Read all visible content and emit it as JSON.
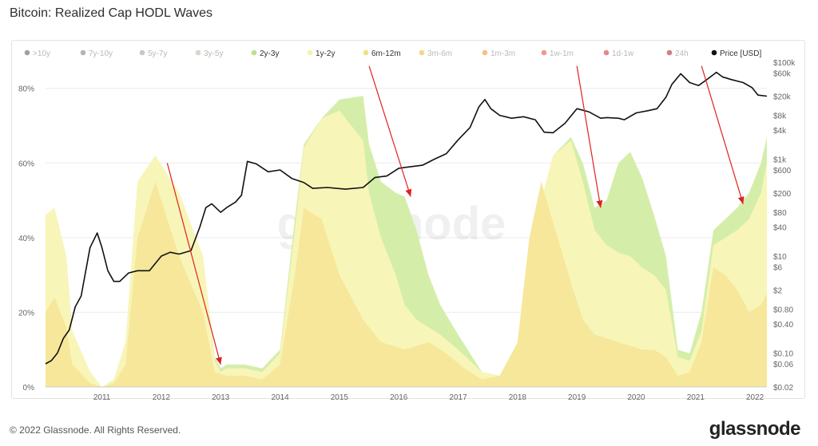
{
  "header": {
    "title": "Bitcoin: Realized Cap HODL Waves"
  },
  "footer": {
    "copyright": "© 2022 Glassnode. All Rights Reserved.",
    "logo": "glassnode"
  },
  "watermark": "glassnode",
  "chart_data": {
    "type": "area",
    "title": "Bitcoin: Realized Cap HODL Waves",
    "legend_position": "top",
    "legend": [
      {
        "name": ">10y",
        "color": "#555555",
        "active": false
      },
      {
        "name": "7y-10y",
        "color": "#777777",
        "active": false
      },
      {
        "name": "5y-7y",
        "color": "#999999",
        "active": false
      },
      {
        "name": "3y-5y",
        "color": "#b7b7a0",
        "active": false
      },
      {
        "name": "2y-3y",
        "color": "#b9e38f",
        "active": true
      },
      {
        "name": "1y-2y",
        "color": "#f6f3a6",
        "active": true
      },
      {
        "name": "6m-12m",
        "color": "#f3e27c",
        "active": true
      },
      {
        "name": "3m-6m",
        "color": "#f0b42c",
        "active": false
      },
      {
        "name": "1m-3m",
        "color": "#f08b2d",
        "active": false
      },
      {
        "name": "1w-1m",
        "color": "#e6433c",
        "active": false
      },
      {
        "name": "1d-1w",
        "color": "#d9202d",
        "active": false
      },
      {
        "name": "24h",
        "color": "#a8121f",
        "active": false
      },
      {
        "name": "Price [USD]",
        "color": "#111111",
        "active": true
      }
    ],
    "x_ticks": [
      "2011",
      "2012",
      "2013",
      "2014",
      "2015",
      "2016",
      "2017",
      "2018",
      "2019",
      "2020",
      "2021",
      "2022"
    ],
    "y_left_ticks": [
      "0%",
      "20%",
      "40%",
      "60%",
      "80%"
    ],
    "y_left_range": [
      0,
      0.87
    ],
    "y_right_ticks": [
      "$0.02",
      "$0.06",
      "$0.10",
      "$0.40",
      "$0.80",
      "$2",
      "$6",
      "$10",
      "$40",
      "$80",
      "$200",
      "$600",
      "$1k",
      "$4k",
      "$8k",
      "$20k",
      "$60k",
      "$100k"
    ],
    "y_right_range_log10": [
      -1.7,
      5.0
    ],
    "x_range": [
      2010.55,
      2022.7
    ],
    "grid": true,
    "areas": [
      {
        "name": "2y-3y",
        "color": "#d4eeaa",
        "x": [
          2010.55,
          2010.7,
          2010.9,
          2011.0,
          2011.3,
          2011.5,
          2011.7,
          2011.9,
          2012.1,
          2012.4,
          2012.8,
          2013.2,
          2013.4,
          2013.5,
          2013.6,
          2013.9,
          2014.2,
          2014.5,
          2014.75,
          2014.9,
          2015.2,
          2015.5,
          2015.9,
          2016.0,
          2016.2,
          2016.45,
          2016.6,
          2016.8,
          2017.0,
          2017.2,
          2017.5,
          2017.9,
          2018.2,
          2018.5,
          2018.7,
          2018.9,
          2019.1,
          2019.4,
          2019.6,
          2019.8,
          2020.0,
          2020.2,
          2020.4,
          2020.6,
          2020.8,
          2021.0,
          2021.2,
          2021.4,
          2021.6,
          2021.8,
          2022.0,
          2022.2,
          2022.4,
          2022.6,
          2022.7
        ],
        "y": [
          0.46,
          0.48,
          0.35,
          0.15,
          0.04,
          0.0,
          0.02,
          0.12,
          0.55,
          0.62,
          0.52,
          0.35,
          0.08,
          0.05,
          0.06,
          0.06,
          0.05,
          0.1,
          0.45,
          0.65,
          0.72,
          0.77,
          0.78,
          0.65,
          0.55,
          0.52,
          0.51,
          0.42,
          0.3,
          0.22,
          0.14,
          0.04,
          0.03,
          0.1,
          0.28,
          0.5,
          0.62,
          0.67,
          0.6,
          0.48,
          0.5,
          0.6,
          0.63,
          0.56,
          0.46,
          0.35,
          0.1,
          0.09,
          0.2,
          0.42,
          0.45,
          0.48,
          0.52,
          0.6,
          0.67
        ]
      },
      {
        "name": "1y-2y",
        "color": "#f8f5b8",
        "x": [
          2010.55,
          2010.7,
          2010.9,
          2011.0,
          2011.3,
          2011.5,
          2011.7,
          2011.9,
          2012.1,
          2012.4,
          2012.8,
          2013.2,
          2013.4,
          2013.5,
          2013.6,
          2013.9,
          2014.2,
          2014.5,
          2014.75,
          2014.9,
          2015.2,
          2015.5,
          2015.9,
          2016.0,
          2016.2,
          2016.45,
          2016.6,
          2016.8,
          2017.0,
          2017.2,
          2017.5,
          2017.9,
          2018.2,
          2018.5,
          2018.7,
          2018.9,
          2019.1,
          2019.4,
          2019.6,
          2019.8,
          2020.0,
          2020.2,
          2020.4,
          2020.6,
          2020.8,
          2021.0,
          2021.2,
          2021.4,
          2021.6,
          2021.8,
          2022.0,
          2022.2,
          2022.4,
          2022.6,
          2022.7
        ],
        "y": [
          0.46,
          0.48,
          0.35,
          0.15,
          0.04,
          0.0,
          0.02,
          0.12,
          0.55,
          0.62,
          0.52,
          0.35,
          0.07,
          0.04,
          0.05,
          0.05,
          0.04,
          0.09,
          0.42,
          0.64,
          0.72,
          0.74,
          0.66,
          0.52,
          0.4,
          0.3,
          0.22,
          0.18,
          0.16,
          0.14,
          0.1,
          0.04,
          0.03,
          0.1,
          0.28,
          0.5,
          0.62,
          0.66,
          0.55,
          0.42,
          0.38,
          0.36,
          0.35,
          0.32,
          0.3,
          0.26,
          0.08,
          0.07,
          0.15,
          0.38,
          0.4,
          0.42,
          0.45,
          0.52,
          0.6
        ]
      },
      {
        "name": "6m-12m",
        "color": "#f6e79a",
        "x": [
          2010.55,
          2010.7,
          2010.9,
          2011.0,
          2011.3,
          2011.5,
          2011.7,
          2011.9,
          2012.1,
          2012.4,
          2012.8,
          2013.2,
          2013.4,
          2013.6,
          2013.9,
          2014.2,
          2014.5,
          2014.75,
          2014.9,
          2015.2,
          2015.5,
          2015.9,
          2016.2,
          2016.6,
          2017.0,
          2017.3,
          2017.6,
          2017.9,
          2018.2,
          2018.5,
          2018.7,
          2018.9,
          2019.1,
          2019.4,
          2019.6,
          2019.8,
          2020.0,
          2020.2,
          2020.4,
          2020.6,
          2020.8,
          2021.0,
          2021.2,
          2021.4,
          2021.6,
          2021.8,
          2022.0,
          2022.2,
          2022.4,
          2022.6,
          2022.7
        ],
        "y": [
          0.2,
          0.24,
          0.16,
          0.06,
          0.01,
          0.0,
          0.01,
          0.06,
          0.4,
          0.55,
          0.35,
          0.2,
          0.04,
          0.03,
          0.03,
          0.02,
          0.06,
          0.3,
          0.48,
          0.45,
          0.3,
          0.18,
          0.12,
          0.1,
          0.12,
          0.09,
          0.05,
          0.02,
          0.03,
          0.12,
          0.4,
          0.55,
          0.44,
          0.28,
          0.18,
          0.14,
          0.13,
          0.12,
          0.11,
          0.1,
          0.1,
          0.08,
          0.03,
          0.04,
          0.12,
          0.32,
          0.3,
          0.26,
          0.2,
          0.22,
          0.25
        ]
      }
    ],
    "price": {
      "name": "Price [USD]",
      "color": "#111111",
      "x": [
        2010.55,
        2010.65,
        2010.75,
        2010.85,
        2010.95,
        2011.05,
        2011.15,
        2011.3,
        2011.42,
        2011.5,
        2011.6,
        2011.7,
        2011.8,
        2011.95,
        2012.1,
        2012.3,
        2012.5,
        2012.65,
        2012.8,
        2013.0,
        2013.15,
        2013.25,
        2013.35,
        2013.5,
        2013.6,
        2013.75,
        2013.85,
        2013.95,
        2014.1,
        2014.3,
        2014.5,
        2014.7,
        2014.9,
        2015.05,
        2015.3,
        2015.6,
        2015.9,
        2016.1,
        2016.3,
        2016.5,
        2016.7,
        2016.9,
        2017.1,
        2017.3,
        2017.5,
        2017.7,
        2017.85,
        2017.95,
        2018.05,
        2018.2,
        2018.4,
        2018.6,
        2018.8,
        2018.95,
        2019.1,
        2019.3,
        2019.5,
        2019.7,
        2019.9,
        2020.0,
        2020.2,
        2020.3,
        2020.5,
        2020.7,
        2020.85,
        2021.0,
        2021.1,
        2021.25,
        2021.4,
        2021.55,
        2021.7,
        2021.85,
        2021.95,
        2022.1,
        2022.3,
        2022.45,
        2022.55,
        2022.7
      ],
      "y": [
        0.06,
        0.07,
        0.1,
        0.2,
        0.3,
        0.9,
        1.5,
        15,
        30,
        15,
        5,
        3,
        3,
        4.5,
        5,
        5,
        10,
        12,
        11,
        13,
        40,
        100,
        120,
        80,
        100,
        130,
        180,
        900,
        800,
        550,
        600,
        400,
        330,
        250,
        260,
        240,
        260,
        420,
        450,
        650,
        700,
        750,
        1000,
        1300,
        2500,
        4500,
        12000,
        17000,
        11000,
        8000,
        7000,
        7500,
        6500,
        3600,
        3500,
        5500,
        11000,
        9500,
        7000,
        7200,
        7000,
        6500,
        9000,
        10000,
        11000,
        19000,
        35000,
        58000,
        38000,
        33000,
        45000,
        62000,
        50000,
        44000,
        38000,
        30000,
        21000,
        20000
      ]
    },
    "annotations": [
      {
        "type": "arrow",
        "color": "#e02020",
        "from": [
          2012.6,
          0.6
        ],
        "to": [
          2013.5,
          0.06
        ]
      },
      {
        "type": "arrow",
        "color": "#e02020",
        "from": [
          2016.0,
          0.86
        ],
        "to": [
          2016.7,
          0.51
        ]
      },
      {
        "type": "arrow",
        "color": "#e02020",
        "from": [
          2019.5,
          0.86
        ],
        "to": [
          2019.9,
          0.48
        ]
      },
      {
        "type": "arrow",
        "color": "#e02020",
        "from": [
          2021.6,
          0.86
        ],
        "to": [
          2022.3,
          0.49
        ]
      }
    ]
  }
}
